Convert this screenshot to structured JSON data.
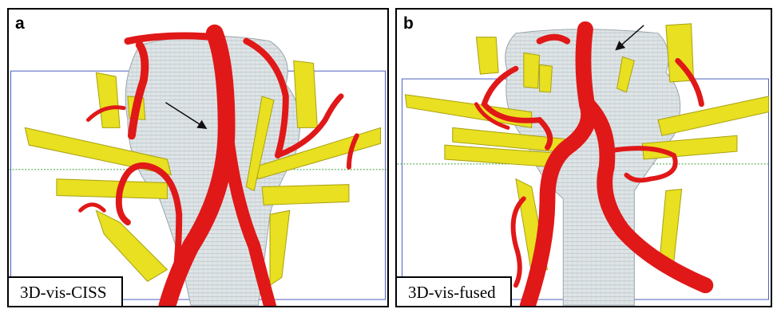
{
  "panels": [
    {
      "letter": "a",
      "caption": "3D-vis-CISS"
    },
    {
      "letter": "b",
      "caption": "3D-vis-fused"
    }
  ],
  "colors": {
    "brainstem": "#dde3e5",
    "artery": "#e01818",
    "nerve": "#e8e020",
    "frame": "#4a5fc0",
    "guide": "#3aa03a"
  },
  "icons": [
    "arrow-icon"
  ]
}
